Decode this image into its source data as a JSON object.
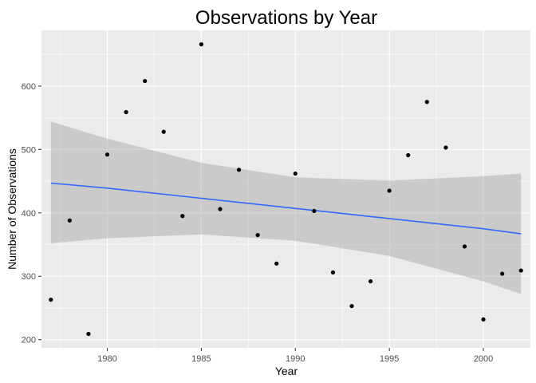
{
  "chart_data": {
    "type": "scatter",
    "title": "Observations by Year",
    "xlabel": "Year",
    "ylabel": "Number of Observations",
    "xlim": [
      1976.5,
      2002.5
    ],
    "ylim": [
      187,
      688
    ],
    "x_ticks": [
      1980,
      1985,
      1990,
      1995,
      2000
    ],
    "y_ticks": [
      200,
      300,
      400,
      500,
      600
    ],
    "grid": true,
    "points": [
      {
        "x": 1977,
        "y": 263
      },
      {
        "x": 1978,
        "y": 388
      },
      {
        "x": 1979,
        "y": 209
      },
      {
        "x": 1980,
        "y": 492
      },
      {
        "x": 1981,
        "y": 559
      },
      {
        "x": 1982,
        "y": 608
      },
      {
        "x": 1983,
        "y": 528
      },
      {
        "x": 1984,
        "y": 395
      },
      {
        "x": 1985,
        "y": 666
      },
      {
        "x": 1986,
        "y": 406
      },
      {
        "x": 1987,
        "y": 468
      },
      {
        "x": 1988,
        "y": 365
      },
      {
        "x": 1989,
        "y": 320
      },
      {
        "x": 1990,
        "y": 462
      },
      {
        "x": 1991,
        "y": 403
      },
      {
        "x": 1992,
        "y": 306
      },
      {
        "x": 1993,
        "y": 253
      },
      {
        "x": 1994,
        "y": 292
      },
      {
        "x": 1995,
        "y": 435
      },
      {
        "x": 1996,
        "y": 491
      },
      {
        "x": 1997,
        "y": 575
      },
      {
        "x": 1998,
        "y": 503
      },
      {
        "x": 1999,
        "y": 347
      },
      {
        "x": 2000,
        "y": 232
      },
      {
        "x": 2001,
        "y": 304
      },
      {
        "x": 2002,
        "y": 309
      }
    ],
    "trend_line": {
      "x": [
        1977,
        1980,
        1985,
        1990,
        1995,
        2000,
        2002
      ],
      "y": [
        447,
        439,
        423,
        407,
        391,
        375,
        367
      ]
    },
    "confidence_band": {
      "x": [
        1977,
        1980,
        1985,
        1990,
        1995,
        2000,
        2002
      ],
      "upper": [
        544,
        517,
        479,
        456,
        451,
        458,
        462
      ],
      "lower": [
        352,
        360,
        366,
        356,
        332,
        292,
        272
      ]
    },
    "colors": {
      "panel": "#ebebeb",
      "grid_major": "#ffffff",
      "point": "#000000",
      "trend": "#3366ff",
      "band": "#999999"
    }
  }
}
